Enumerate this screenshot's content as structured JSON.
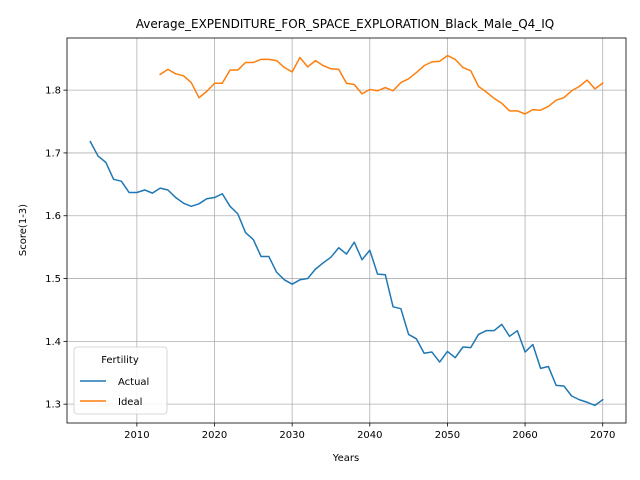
{
  "chart_data": {
    "type": "line",
    "title": "Average_EXPENDITURE_FOR_SPACE_EXPLORATION_Black_Male_Q4_IQ",
    "xlabel": "Years",
    "ylabel": "Score(1-3)",
    "xlim": [
      2001,
      2073
    ],
    "ylim": [
      1.27,
      1.883
    ],
    "xticks": [
      2010,
      2020,
      2030,
      2040,
      2050,
      2060,
      2070
    ],
    "yticks": [
      1.3,
      1.4,
      1.5,
      1.6,
      1.7,
      1.8
    ],
    "grid": true,
    "legend": {
      "title": "Fertility",
      "position": "lower-left"
    },
    "series": [
      {
        "name": "Actual",
        "color": "#1f77b4",
        "x": [
          2004,
          2005,
          2006,
          2007,
          2008,
          2009,
          2010,
          2011,
          2012,
          2013,
          2014,
          2015,
          2016,
          2017,
          2018,
          2019,
          2020,
          2021,
          2022,
          2023,
          2024,
          2025,
          2026,
          2027,
          2028,
          2029,
          2030,
          2031,
          2032,
          2033,
          2034,
          2035,
          2036,
          2037,
          2038,
          2039,
          2040,
          2041,
          2042,
          2043,
          2044,
          2045,
          2046,
          2047,
          2048,
          2049,
          2050,
          2051,
          2052,
          2053,
          2054,
          2055,
          2056,
          2057,
          2058,
          2059,
          2060,
          2061,
          2062,
          2063,
          2064,
          2065,
          2066,
          2067,
          2068,
          2069,
          2070
        ],
        "values": [
          1.718,
          1.695,
          1.685,
          1.658,
          1.655,
          1.637,
          1.637,
          1.641,
          1.636,
          1.644,
          1.641,
          1.629,
          1.62,
          1.615,
          1.619,
          1.627,
          1.629,
          1.635,
          1.615,
          1.603,
          1.573,
          1.562,
          1.535,
          1.535,
          1.51,
          1.498,
          1.491,
          1.498,
          1.5,
          1.515,
          1.525,
          1.534,
          1.549,
          1.539,
          1.558,
          1.53,
          1.545,
          1.507,
          1.506,
          1.455,
          1.452,
          1.411,
          1.404,
          1.381,
          1.383,
          1.367,
          1.384,
          1.374,
          1.391,
          1.39,
          1.411,
          1.417,
          1.417,
          1.427,
          1.408,
          1.417,
          1.383,
          1.395,
          1.357,
          1.36,
          1.33,
          1.329,
          1.313,
          1.307,
          1.303,
          1.298,
          1.307
        ]
      },
      {
        "name": "Ideal",
        "color": "#ff7f0e",
        "x": [
          2013,
          2014,
          2015,
          2016,
          2017,
          2018,
          2019,
          2020,
          2021,
          2022,
          2023,
          2024,
          2025,
          2026,
          2027,
          2028,
          2029,
          2030,
          2031,
          2032,
          2033,
          2034,
          2035,
          2036,
          2037,
          2038,
          2039,
          2040,
          2041,
          2042,
          2043,
          2044,
          2045,
          2046,
          2047,
          2048,
          2049,
          2050,
          2051,
          2052,
          2053,
          2054,
          2055,
          2056,
          2057,
          2058,
          2059,
          2060,
          2061,
          2062,
          2063,
          2064,
          2065,
          2066,
          2067,
          2068,
          2069,
          2070
        ],
        "values": [
          1.825,
          1.833,
          1.826,
          1.823,
          1.812,
          1.788,
          1.798,
          1.811,
          1.811,
          1.832,
          1.832,
          1.844,
          1.844,
          1.849,
          1.849,
          1.847,
          1.836,
          1.829,
          1.852,
          1.837,
          1.847,
          1.839,
          1.834,
          1.833,
          1.811,
          1.809,
          1.794,
          1.801,
          1.799,
          1.804,
          1.799,
          1.812,
          1.818,
          1.828,
          1.839,
          1.845,
          1.846,
          1.855,
          1.849,
          1.836,
          1.831,
          1.806,
          1.797,
          1.787,
          1.779,
          1.767,
          1.767,
          1.762,
          1.769,
          1.768,
          1.774,
          1.784,
          1.788,
          1.799,
          1.806,
          1.816,
          1.802,
          1.811
        ]
      }
    ]
  }
}
